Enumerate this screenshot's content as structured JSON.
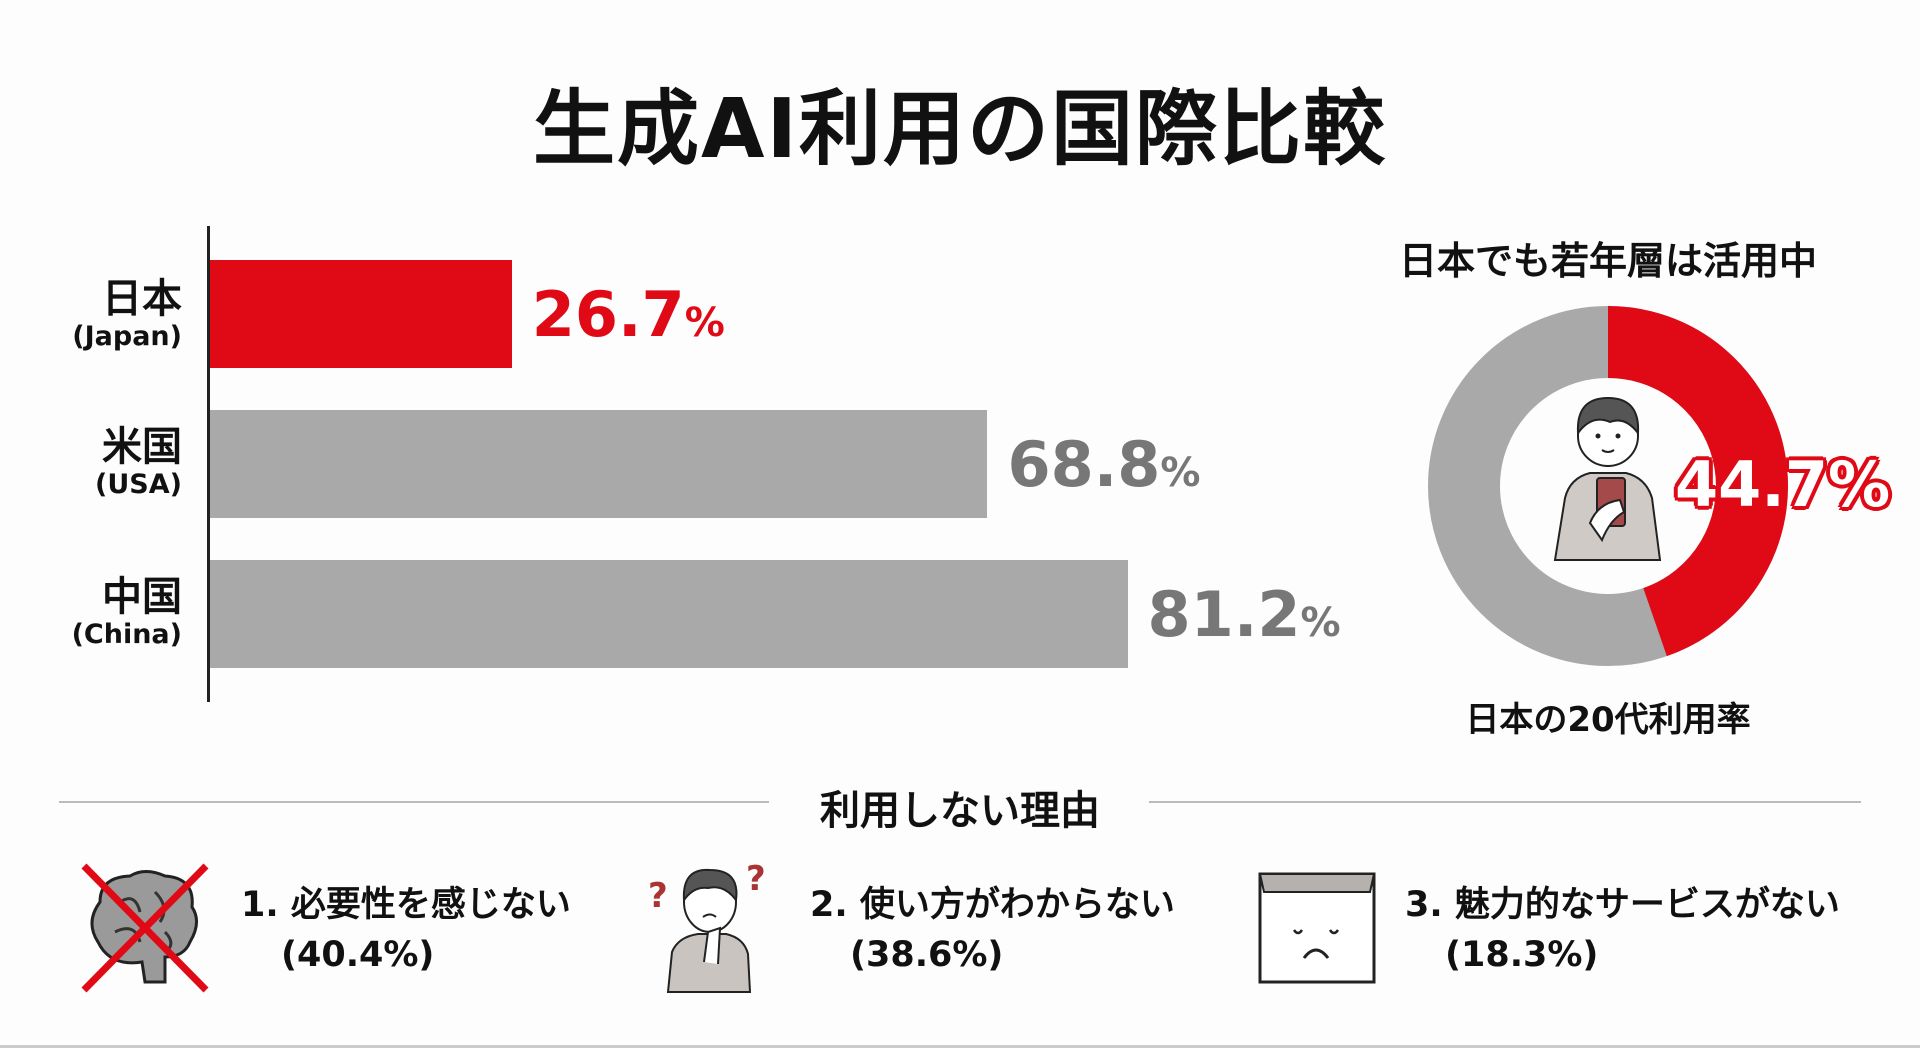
{
  "title": "生成AI利用の国際比較",
  "colors": {
    "highlight": "#e00a17",
    "other": "#a9a9a9",
    "other_text": "#777777",
    "text": "#111111"
  },
  "chart_data": [
    {
      "type": "bar",
      "orientation": "horizontal",
      "categories": [
        {
          "name": "日本",
          "en": "(Japan)"
        },
        {
          "name": "米国",
          "en": "(USA)"
        },
        {
          "name": "中国",
          "en": "(China)"
        }
      ],
      "values": [
        26.7,
        68.8,
        81.2
      ],
      "value_labels": [
        "26.7",
        "68.8",
        "81.2"
      ],
      "unit": "%",
      "highlight_index": 0,
      "xlim": [
        0,
        100
      ]
    },
    {
      "type": "pie",
      "style": "donut",
      "title": "日本でも若年層は活用中",
      "caption": "日本の20代利用率",
      "value": 44.7,
      "value_label": "44.7%",
      "center_icon": "young-man-with-smartphone-icon"
    }
  ],
  "reasons": {
    "title": "利用しない理由",
    "items": [
      {
        "label": "1. 必要性を感じない",
        "pct": "(40.4%)",
        "value": 40.4,
        "icon": "crossed-brain-icon"
      },
      {
        "label": "2. 使い方がわからない",
        "pct": "(38.6%)",
        "value": 38.6,
        "icon": "confused-person-icon"
      },
      {
        "label": "3. 魅力的なサービスがない",
        "pct": "(18.3%)",
        "value": 18.3,
        "icon": "sad-box-icon"
      }
    ]
  }
}
